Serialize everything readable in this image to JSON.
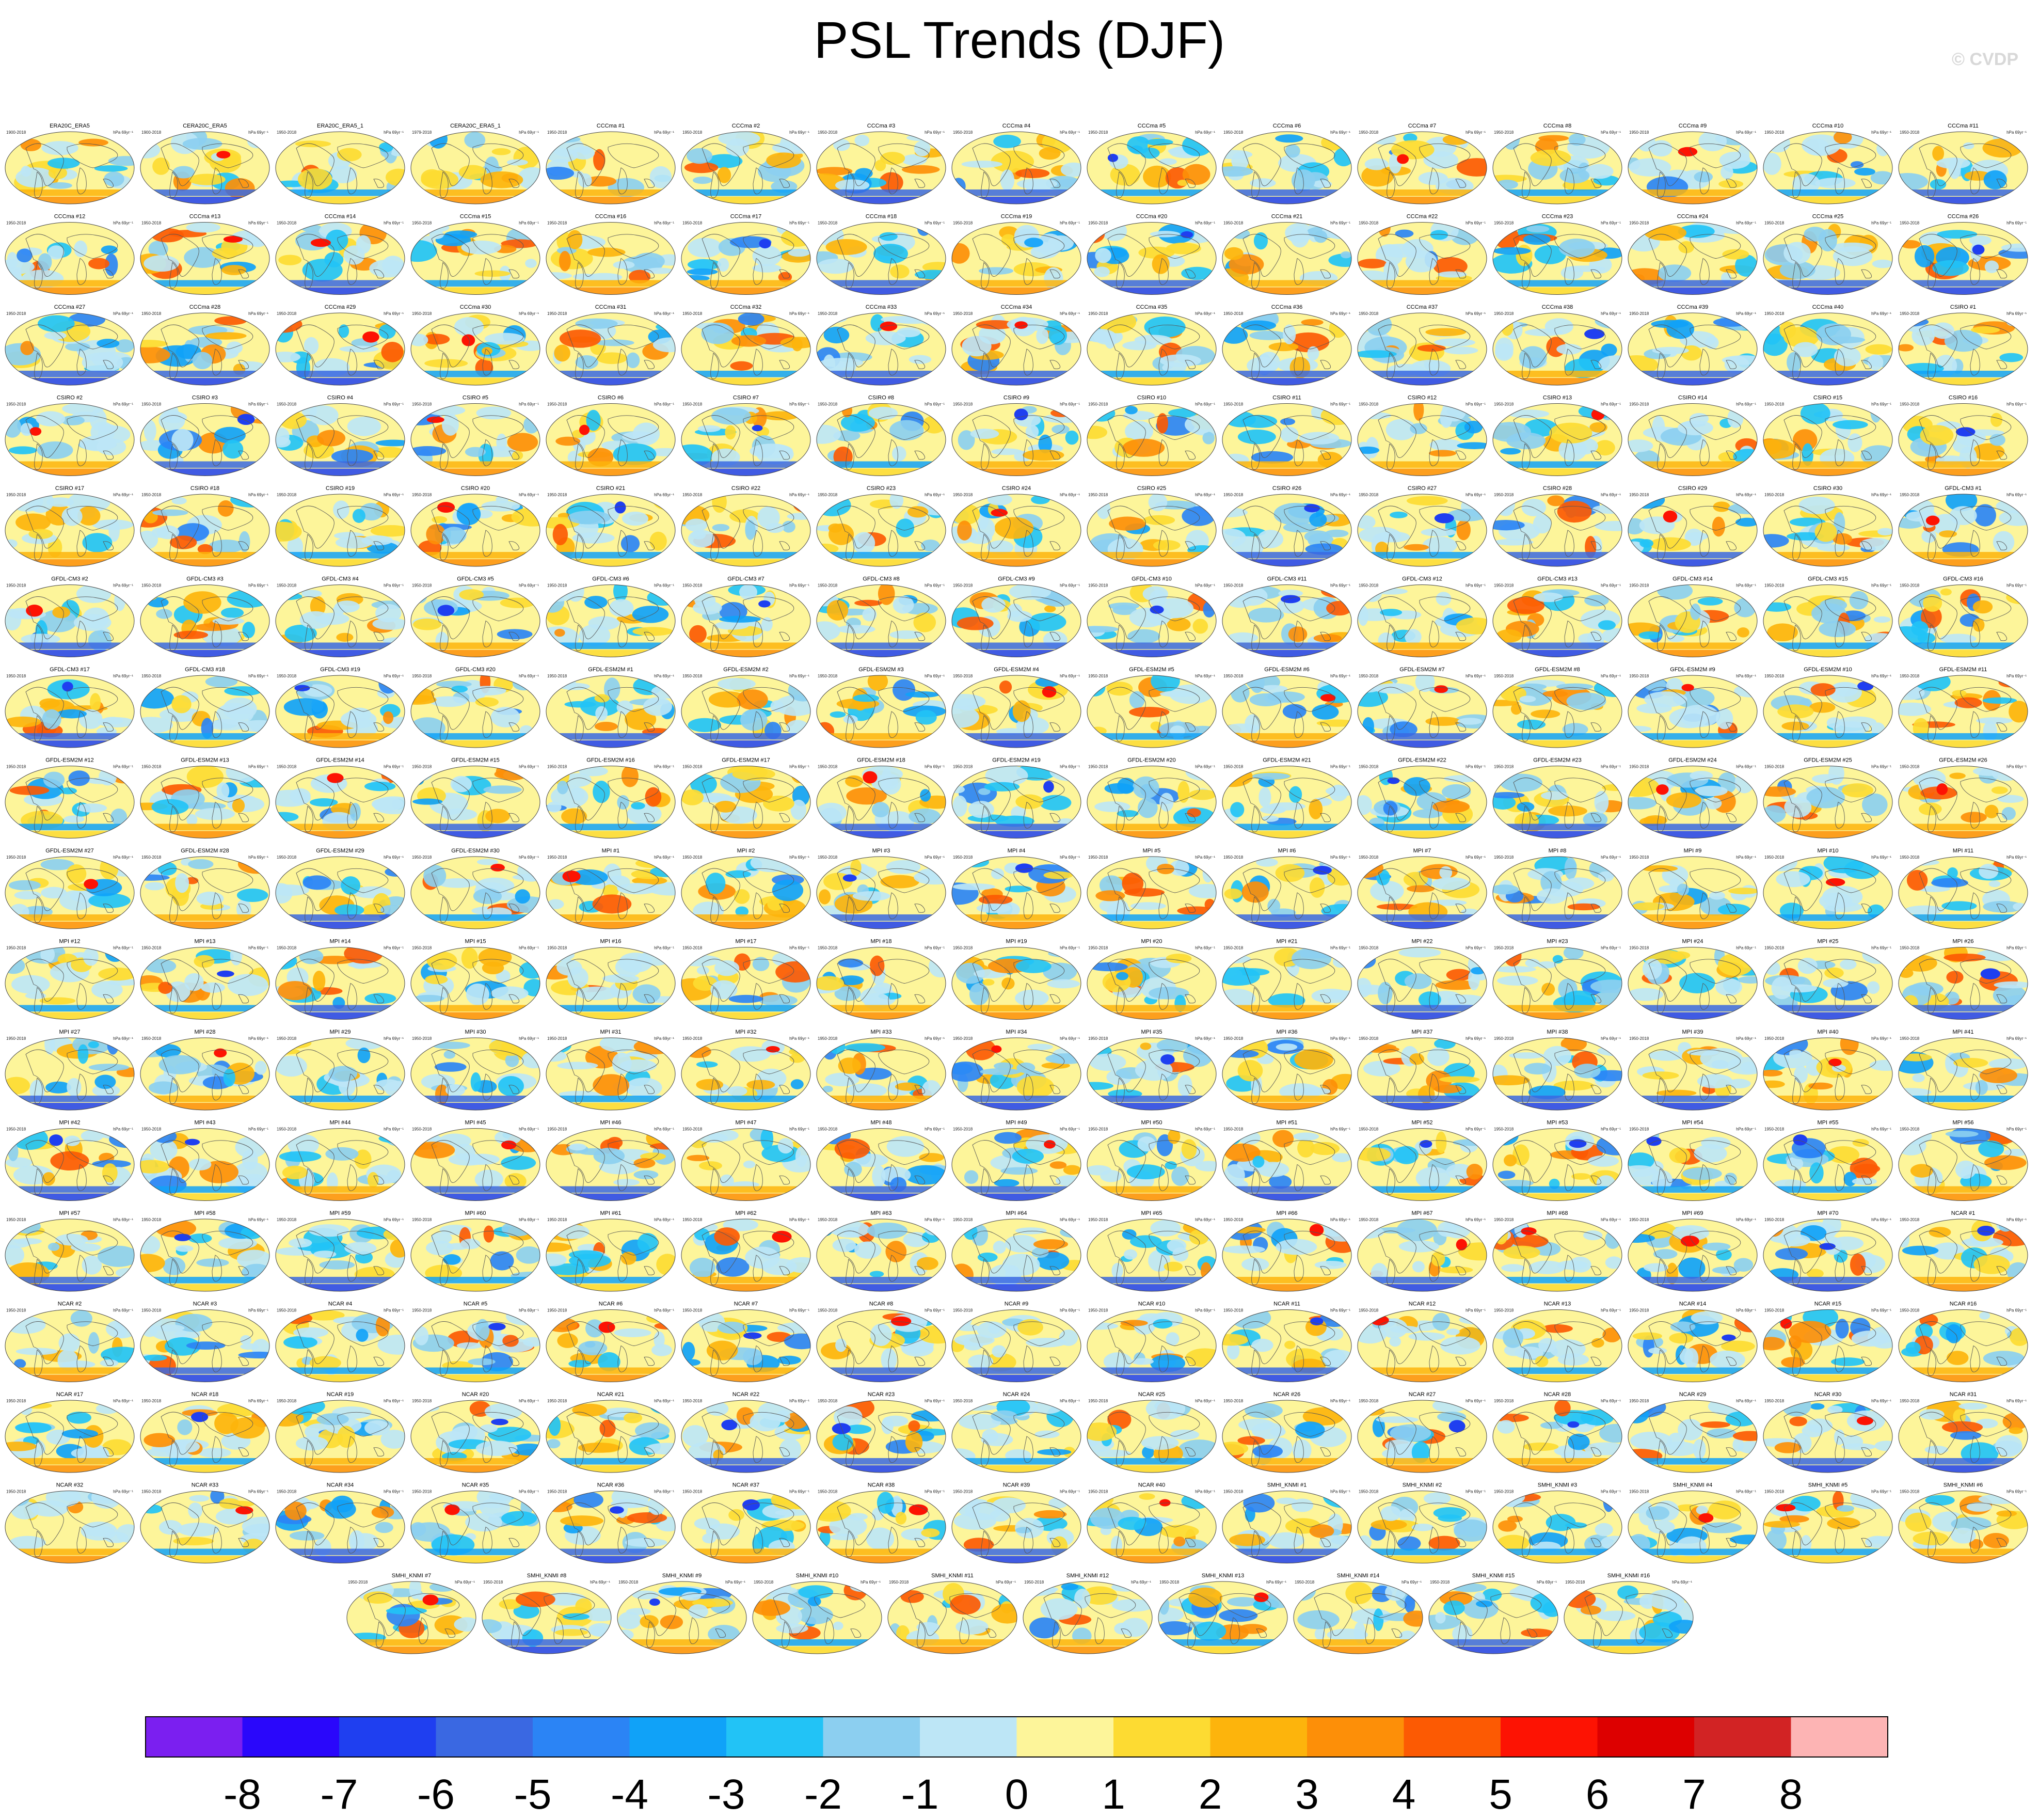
{
  "header": {
    "title": "PSL Trends (DJF)",
    "credit": "© CVDP"
  },
  "chart_data": {
    "type": "heatmap",
    "title": "PSL Trends (DJF)",
    "description_units": "hPa 69yr⁻¹",
    "panel_period_default": "1950-2018",
    "panels": [
      {
        "name": "ERA20C_ERA5",
        "period": "1900-2018"
      },
      {
        "name": "CERA20C_ERA5",
        "period": "1900-2018"
      },
      {
        "name": "ERA20C_ERA5_1",
        "period": "1950-2018"
      },
      {
        "name": "CERA20C_ERA5_1",
        "period": "1979-2018"
      },
      {
        "name": "CCCma #1"
      },
      {
        "name": "CCCma #2"
      },
      {
        "name": "CCCma #3"
      },
      {
        "name": "CCCma #4"
      },
      {
        "name": "CCCma #5"
      },
      {
        "name": "CCCma #6"
      },
      {
        "name": "CCCma #7"
      },
      {
        "name": "CCCma #8"
      },
      {
        "name": "CCCma #9"
      },
      {
        "name": "CCCma #10"
      },
      {
        "name": "CCCma #11"
      },
      {
        "name": "CCCma #12"
      },
      {
        "name": "CCCma #13"
      },
      {
        "name": "CCCma #14"
      },
      {
        "name": "CCCma #15"
      },
      {
        "name": "CCCma #16"
      },
      {
        "name": "CCCma #17"
      },
      {
        "name": "CCCma #18"
      },
      {
        "name": "CCCma #19"
      },
      {
        "name": "CCCma #20"
      },
      {
        "name": "CCCma #21"
      },
      {
        "name": "CCCma #22"
      },
      {
        "name": "CCCma #23"
      },
      {
        "name": "CCCma #24"
      },
      {
        "name": "CCCma #25"
      },
      {
        "name": "CCCma #26"
      },
      {
        "name": "CCCma #27"
      },
      {
        "name": "CCCma #28"
      },
      {
        "name": "CCCma #29"
      },
      {
        "name": "CCCma #30"
      },
      {
        "name": "CCCma #31"
      },
      {
        "name": "CCCma #32"
      },
      {
        "name": "CCCma #33"
      },
      {
        "name": "CCCma #34"
      },
      {
        "name": "CCCma #35"
      },
      {
        "name": "CCCma #36"
      },
      {
        "name": "CCCma #37"
      },
      {
        "name": "CCCma #38"
      },
      {
        "name": "CCCma #39"
      },
      {
        "name": "CCCma #40"
      },
      {
        "name": "CSIRO #1"
      },
      {
        "name": "CSIRO #2"
      },
      {
        "name": "CSIRO #3"
      },
      {
        "name": "CSIRO #4"
      },
      {
        "name": "CSIRO #5"
      },
      {
        "name": "CSIRO #6"
      },
      {
        "name": "CSIRO #7"
      },
      {
        "name": "CSIRO #8"
      },
      {
        "name": "CSIRO #9"
      },
      {
        "name": "CSIRO #10"
      },
      {
        "name": "CSIRO #11"
      },
      {
        "name": "CSIRO #12"
      },
      {
        "name": "CSIRO #13"
      },
      {
        "name": "CSIRO #14"
      },
      {
        "name": "CSIRO #15"
      },
      {
        "name": "CSIRO #16"
      },
      {
        "name": "CSIRO #17"
      },
      {
        "name": "CSIRO #18"
      },
      {
        "name": "CSIRO #19"
      },
      {
        "name": "CSIRO #20"
      },
      {
        "name": "CSIRO #21"
      },
      {
        "name": "CSIRO #22"
      },
      {
        "name": "CSIRO #23"
      },
      {
        "name": "CSIRO #24"
      },
      {
        "name": "CSIRO #25"
      },
      {
        "name": "CSIRO #26"
      },
      {
        "name": "CSIRO #27"
      },
      {
        "name": "CSIRO #28"
      },
      {
        "name": "CSIRO #29"
      },
      {
        "name": "CSIRO #30"
      },
      {
        "name": "GFDL-CM3 #1"
      },
      {
        "name": "GFDL-CM3 #2"
      },
      {
        "name": "GFDL-CM3 #3"
      },
      {
        "name": "GFDL-CM3 #4"
      },
      {
        "name": "GFDL-CM3 #5"
      },
      {
        "name": "GFDL-CM3 #6"
      },
      {
        "name": "GFDL-CM3 #7"
      },
      {
        "name": "GFDL-CM3 #8"
      },
      {
        "name": "GFDL-CM3 #9"
      },
      {
        "name": "GFDL-CM3 #10"
      },
      {
        "name": "GFDL-CM3 #11"
      },
      {
        "name": "GFDL-CM3 #12"
      },
      {
        "name": "GFDL-CM3 #13"
      },
      {
        "name": "GFDL-CM3 #14"
      },
      {
        "name": "GFDL-CM3 #15"
      },
      {
        "name": "GFDL-CM3 #16"
      },
      {
        "name": "GFDL-CM3 #17"
      },
      {
        "name": "GFDL-CM3 #18"
      },
      {
        "name": "GFDL-CM3 #19"
      },
      {
        "name": "GFDL-CM3 #20"
      },
      {
        "name": "GFDL-ESM2M #1"
      },
      {
        "name": "GFDL-ESM2M #2"
      },
      {
        "name": "GFDL-ESM2M #3"
      },
      {
        "name": "GFDL-ESM2M #4"
      },
      {
        "name": "GFDL-ESM2M #5"
      },
      {
        "name": "GFDL-ESM2M #6"
      },
      {
        "name": "GFDL-ESM2M #7"
      },
      {
        "name": "GFDL-ESM2M #8"
      },
      {
        "name": "GFDL-ESM2M #9"
      },
      {
        "name": "GFDL-ESM2M #10"
      },
      {
        "name": "GFDL-ESM2M #11"
      },
      {
        "name": "GFDL-ESM2M #12"
      },
      {
        "name": "GFDL-ESM2M #13"
      },
      {
        "name": "GFDL-ESM2M #14"
      },
      {
        "name": "GFDL-ESM2M #15"
      },
      {
        "name": "GFDL-ESM2M #16"
      },
      {
        "name": "GFDL-ESM2M #17"
      },
      {
        "name": "GFDL-ESM2M #18"
      },
      {
        "name": "GFDL-ESM2M #19"
      },
      {
        "name": "GFDL-ESM2M #20"
      },
      {
        "name": "GFDL-ESM2M #21"
      },
      {
        "name": "GFDL-ESM2M #22"
      },
      {
        "name": "GFDL-ESM2M #23"
      },
      {
        "name": "GFDL-ESM2M #24"
      },
      {
        "name": "GFDL-ESM2M #25"
      },
      {
        "name": "GFDL-ESM2M #26"
      },
      {
        "name": "GFDL-ESM2M #27"
      },
      {
        "name": "GFDL-ESM2M #28"
      },
      {
        "name": "GFDL-ESM2M #29"
      },
      {
        "name": "GFDL-ESM2M #30"
      },
      {
        "name": "MPI #1"
      },
      {
        "name": "MPI #2"
      },
      {
        "name": "MPI #3"
      },
      {
        "name": "MPI #4"
      },
      {
        "name": "MPI #5"
      },
      {
        "name": "MPI #6"
      },
      {
        "name": "MPI #7"
      },
      {
        "name": "MPI #8"
      },
      {
        "name": "MPI #9"
      },
      {
        "name": "MPI #10"
      },
      {
        "name": "MPI #11"
      },
      {
        "name": "MPI #12"
      },
      {
        "name": "MPI #13"
      },
      {
        "name": "MPI #14"
      },
      {
        "name": "MPI #15"
      },
      {
        "name": "MPI #16"
      },
      {
        "name": "MPI #17"
      },
      {
        "name": "MPI #18"
      },
      {
        "name": "MPI #19"
      },
      {
        "name": "MPI #20"
      },
      {
        "name": "MPI #21"
      },
      {
        "name": "MPI #22"
      },
      {
        "name": "MPI #23"
      },
      {
        "name": "MPI #24"
      },
      {
        "name": "MPI #25"
      },
      {
        "name": "MPI #26"
      },
      {
        "name": "MPI #27"
      },
      {
        "name": "MPI #28"
      },
      {
        "name": "MPI #29"
      },
      {
        "name": "MPI #30"
      },
      {
        "name": "MPI #31"
      },
      {
        "name": "MPI #32"
      },
      {
        "name": "MPI #33"
      },
      {
        "name": "MPI #34"
      },
      {
        "name": "MPI #35"
      },
      {
        "name": "MPI #36"
      },
      {
        "name": "MPI #37"
      },
      {
        "name": "MPI #38"
      },
      {
        "name": "MPI #39"
      },
      {
        "name": "MPI #40"
      },
      {
        "name": "MPI #41"
      },
      {
        "name": "MPI #42"
      },
      {
        "name": "MPI #43"
      },
      {
        "name": "MPI #44"
      },
      {
        "name": "MPI #45"
      },
      {
        "name": "MPI #46"
      },
      {
        "name": "MPI #47"
      },
      {
        "name": "MPI #48"
      },
      {
        "name": "MPI #49"
      },
      {
        "name": "MPI #50"
      },
      {
        "name": "MPI #51"
      },
      {
        "name": "MPI #52"
      },
      {
        "name": "MPI #53"
      },
      {
        "name": "MPI #54"
      },
      {
        "name": "MPI #55"
      },
      {
        "name": "MPI #56"
      },
      {
        "name": "MPI #57"
      },
      {
        "name": "MPI #58"
      },
      {
        "name": "MPI #59"
      },
      {
        "name": "MPI #60"
      },
      {
        "name": "MPI #61"
      },
      {
        "name": "MPI #62"
      },
      {
        "name": "MPI #63"
      },
      {
        "name": "MPI #64"
      },
      {
        "name": "MPI #65"
      },
      {
        "name": "MPI #66"
      },
      {
        "name": "MPI #67"
      },
      {
        "name": "MPI #68"
      },
      {
        "name": "MPI #69"
      },
      {
        "name": "MPI #70"
      },
      {
        "name": "NCAR #1"
      },
      {
        "name": "NCAR #2"
      },
      {
        "name": "NCAR #3"
      },
      {
        "name": "NCAR #4"
      },
      {
        "name": "NCAR #5"
      },
      {
        "name": "NCAR #6"
      },
      {
        "name": "NCAR #7"
      },
      {
        "name": "NCAR #8"
      },
      {
        "name": "NCAR #9"
      },
      {
        "name": "NCAR #10"
      },
      {
        "name": "NCAR #11"
      },
      {
        "name": "NCAR #12"
      },
      {
        "name": "NCAR #13"
      },
      {
        "name": "NCAR #14"
      },
      {
        "name": "NCAR #15"
      },
      {
        "name": "NCAR #16"
      },
      {
        "name": "NCAR #17"
      },
      {
        "name": "NCAR #18"
      },
      {
        "name": "NCAR #19"
      },
      {
        "name": "NCAR #20"
      },
      {
        "name": "NCAR #21"
      },
      {
        "name": "NCAR #22"
      },
      {
        "name": "NCAR #23"
      },
      {
        "name": "NCAR #24"
      },
      {
        "name": "NCAR #25"
      },
      {
        "name": "NCAR #26"
      },
      {
        "name": "NCAR #27"
      },
      {
        "name": "NCAR #28"
      },
      {
        "name": "NCAR #29"
      },
      {
        "name": "NCAR #30"
      },
      {
        "name": "NCAR #31"
      },
      {
        "name": "NCAR #32"
      },
      {
        "name": "NCAR #33"
      },
      {
        "name": "NCAR #34"
      },
      {
        "name": "NCAR #35"
      },
      {
        "name": "NCAR #36"
      },
      {
        "name": "NCAR #37"
      },
      {
        "name": "NCAR #38"
      },
      {
        "name": "NCAR #39"
      },
      {
        "name": "NCAR #40"
      },
      {
        "name": "SMHI_KNMI #1"
      },
      {
        "name": "SMHI_KNMI #2"
      },
      {
        "name": "SMHI_KNMI #3"
      },
      {
        "name": "SMHI_KNMI #4"
      },
      {
        "name": "SMHI_KNMI #5"
      },
      {
        "name": "SMHI_KNMI #6"
      },
      {
        "name": "SMHI_KNMI #7"
      },
      {
        "name": "SMHI_KNMI #8"
      },
      {
        "name": "SMHI_KNMI #9"
      },
      {
        "name": "SMHI_KNMI #10"
      },
      {
        "name": "SMHI_KNMI #11"
      },
      {
        "name": "SMHI_KNMI #12"
      },
      {
        "name": "SMHI_KNMI #13"
      },
      {
        "name": "SMHI_KNMI #14"
      },
      {
        "name": "SMHI_KNMI #15"
      },
      {
        "name": "SMHI_KNMI #16"
      }
    ],
    "colorbar": {
      "ticks": [
        "-8",
        "-7",
        "-6",
        "-5",
        "-4",
        "-3",
        "-2",
        "-1",
        "0",
        "1",
        "2",
        "3",
        "4",
        "5",
        "6",
        "7",
        "8"
      ],
      "colors": [
        "#7b1ff0",
        "#2a07fb",
        "#1f3ff0",
        "#3a68e2",
        "#2b84f5",
        "#10a2f8",
        "#22c3f6",
        "#8ccff0",
        "#bde6f6",
        "#fdf59a",
        "#fddb32",
        "#fdb40c",
        "#fd8f08",
        "#fc5a03",
        "#fd1303",
        "#dd0000",
        "#d22324",
        "#fdb4b4"
      ]
    }
  }
}
